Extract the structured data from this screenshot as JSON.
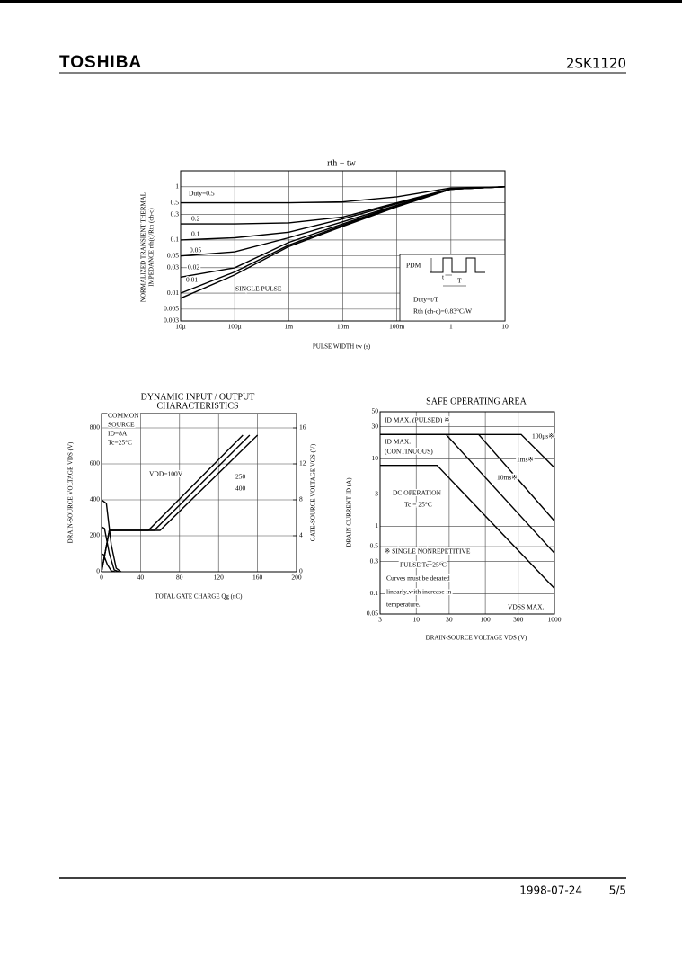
{
  "header": {
    "brand": "TOSHIBA",
    "part": "2SK1120"
  },
  "footer": {
    "date": "1998-07-24",
    "page": "5/5"
  },
  "chart_data": [
    {
      "type": "line",
      "title": "rth − tw",
      "xlabel": "PULSE WIDTH  tw  (s)",
      "ylabel": [
        "NORMALIZED TRANSIENT THERMAL",
        "IMPEDANCE  rth(t)/Rth (ch-c)"
      ],
      "xscale": "log",
      "yscale": "log",
      "grid": true,
      "xlim": [
        1e-05,
        10
      ],
      "ylim": [
        0.003,
        2
      ],
      "xticks": [
        {
          "value": 1e-05,
          "label": "10μ"
        },
        {
          "value": 0.0001,
          "label": "100μ"
        },
        {
          "value": 0.001,
          "label": "1m"
        },
        {
          "value": 0.01,
          "label": "10m"
        },
        {
          "value": 0.1,
          "label": "100m"
        },
        1,
        10
      ],
      "yticks": [
        1,
        0.5,
        0.3,
        0.1,
        0.05,
        0.03,
        0.01,
        0.005,
        0.003
      ],
      "x": [
        1e-05,
        0.0001,
        0.001,
        0.01,
        0.1,
        1,
        10
      ],
      "series": [
        {
          "name": "Duty=0.5",
          "color": "#000000",
          "values": [
            0.5,
            0.5,
            0.5,
            0.52,
            0.65,
            0.95,
            1
          ]
        },
        {
          "name": "0.2",
          "color": "#000000",
          "values": [
            0.2,
            0.2,
            0.21,
            0.27,
            0.5,
            0.92,
            1
          ]
        },
        {
          "name": "0.1",
          "color": "#000000",
          "values": [
            0.1,
            0.11,
            0.14,
            0.25,
            0.48,
            0.9,
            1
          ]
        },
        {
          "name": "0.05",
          "color": "#000000",
          "values": [
            0.05,
            0.06,
            0.11,
            0.22,
            0.45,
            0.9,
            1
          ]
        },
        {
          "name": "0.02",
          "color": "#000000",
          "values": [
            0.02,
            0.03,
            0.09,
            0.2,
            0.44,
            0.9,
            1
          ]
        },
        {
          "name": "0.01",
          "color": "#000000",
          "values": [
            0.01,
            0.025,
            0.08,
            0.19,
            0.43,
            0.9,
            1
          ]
        },
        {
          "name": "SINGLE PULSE",
          "color": "#000000",
          "values": [
            0.008,
            0.022,
            0.075,
            0.18,
            0.42,
            0.9,
            1
          ]
        }
      ],
      "annotations": [
        "PDM",
        "t",
        "T",
        "Duty=t/T",
        "Rth (ch-c)=0.83°C/W"
      ]
    },
    {
      "type": "line",
      "title": [
        "DYNAMIC INPUT / OUTPUT",
        "CHARACTERISTICS"
      ],
      "xlabel": "TOTAL GATE CHARGE  Qg  (nC)",
      "ylabel": "DRAIN-SOURCE VOLTAGE  VDS  (V)",
      "y2label": "GATE-SOURCE VOLTAGE  VGS  (V)",
      "grid": true,
      "xlim": [
        0,
        200
      ],
      "ylim": [
        0,
        880
      ],
      "y2lim": [
        0,
        17.6
      ],
      "xticks": [
        0,
        40,
        80,
        120,
        160,
        200
      ],
      "yticks": [
        0,
        200,
        400,
        600,
        800
      ],
      "y2ticks": [
        0,
        4,
        8,
        12,
        16
      ],
      "series": [
        {
          "name": "VDD=100V",
          "color": "#000000",
          "axis": "y2",
          "x": [
            0,
            8,
            48,
            145
          ],
          "values": [
            0,
            4.6,
            4.6,
            15.2
          ]
        },
        {
          "name": "250",
          "color": "#000000",
          "axis": "y2",
          "x": [
            0,
            8,
            54,
            152
          ],
          "values": [
            0,
            4.6,
            4.6,
            15.2
          ]
        },
        {
          "name": "400",
          "color": "#000000",
          "axis": "y2",
          "x": [
            0,
            8,
            60,
            160
          ],
          "values": [
            0,
            4.6,
            4.6,
            15.2
          ]
        },
        {
          "color": "#000000",
          "x": [
            0,
            5,
            10,
            15,
            20
          ],
          "values": [
            400,
            380,
            150,
            20,
            0
          ]
        },
        {
          "color": "#000000",
          "x": [
            0,
            3,
            8,
            13,
            18
          ],
          "values": [
            250,
            240,
            100,
            10,
            0
          ]
        },
        {
          "color": "#000000",
          "x": [
            0,
            2,
            6,
            10,
            14
          ],
          "values": [
            100,
            95,
            40,
            5,
            0
          ]
        }
      ],
      "annotations": [
        "COMMON",
        "SOURCE",
        "ID=8A",
        "Tc=25°C"
      ]
    },
    {
      "type": "line",
      "title": "SAFE OPERATING AREA",
      "xlabel": "DRAIN-SOURCE VOLTAGE  VDS  (V)",
      "ylabel": "DRAIN CURRENT  ID  (A)",
      "xscale": "log",
      "yscale": "log",
      "grid": true,
      "xlim": [
        3,
        1000
      ],
      "ylim": [
        0.05,
        50
      ],
      "xticks": [
        3,
        10,
        30,
        100,
        300,
        1000
      ],
      "yticks": [
        50,
        30,
        10,
        3,
        1,
        0.5,
        0.3,
        0.1,
        0.05
      ],
      "series": [
        {
          "name": "100μs※",
          "color": "#000000",
          "x": [
            3,
            330,
            1000
          ],
          "values": [
            23,
            23,
            7.4
          ]
        },
        {
          "name": "1ms※",
          "color": "#000000",
          "x": [
            3,
            80,
            1000
          ],
          "values": [
            23,
            23,
            1.2
          ]
        },
        {
          "name": "10ms※",
          "color": "#000000",
          "x": [
            3,
            27,
            1000
          ],
          "values": [
            23,
            23,
            0.4
          ]
        },
        {
          "name": "DC OPERATION",
          "color": "#000000",
          "x": [
            3,
            20,
            1000
          ],
          "values": [
            8,
            8,
            0.12
          ]
        }
      ],
      "annotations": [
        "ID MAX. (PULSED) ※",
        "ID MAX.",
        "(CONTINUOUS)",
        "Tc = 25°C",
        "※  SINGLE NONREPETITIVE",
        "PULSE  Tc=25°C",
        "Curves must be derated",
        "linearly with increase in",
        "temperature.",
        "VDSS MAX."
      ]
    }
  ]
}
